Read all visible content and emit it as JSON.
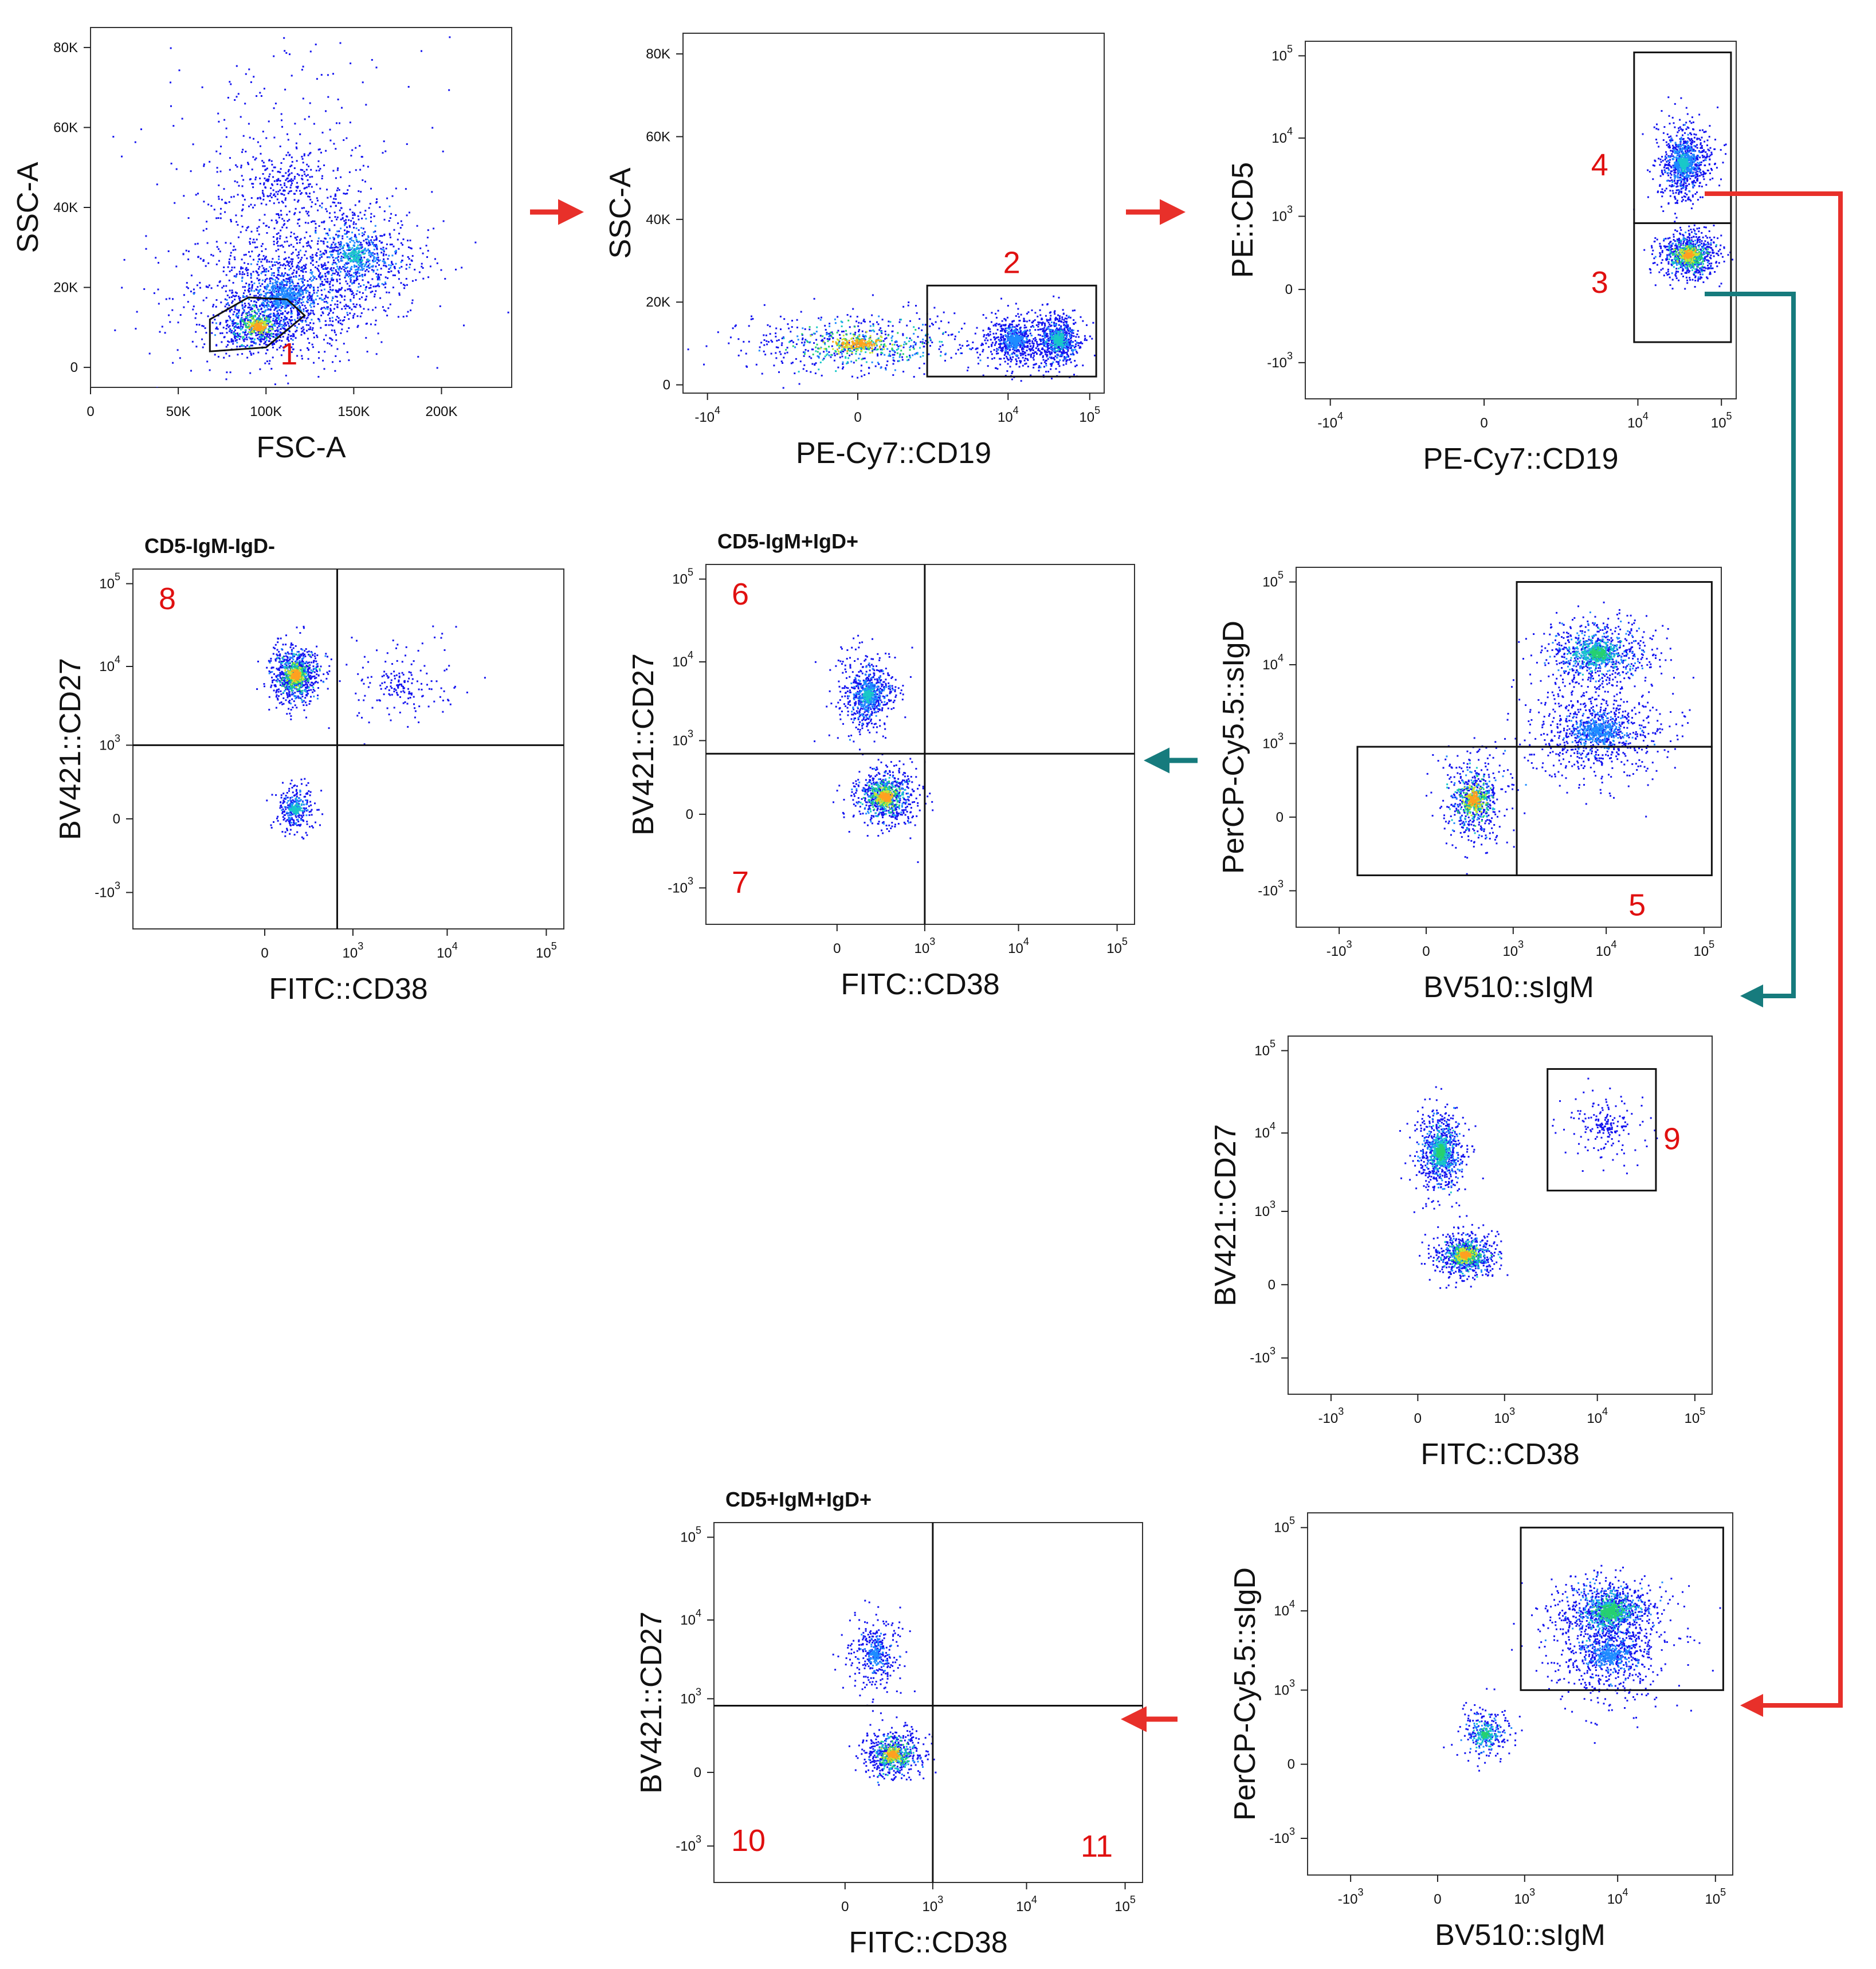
{
  "chart_data": [
    {
      "id": "p1",
      "type": "scatter",
      "xlabel": "FSC-A",
      "ylabel": "SSC-A",
      "title": "",
      "xlim": [
        0,
        240000
      ],
      "ylim": [
        -5000,
        85000
      ],
      "xticks": [
        {
          "v": 0,
          "t": "0"
        },
        {
          "v": 50000,
          "t": "50K"
        },
        {
          "v": 100000,
          "t": "100K"
        },
        {
          "v": 150000,
          "t": "150K"
        },
        {
          "v": 200000,
          "t": "200K"
        }
      ],
      "yticks": [
        {
          "v": 0,
          "t": "0"
        },
        {
          "v": 20000,
          "t": "20K"
        },
        {
          "v": 40000,
          "t": "40K"
        },
        {
          "v": 60000,
          "t": "60K"
        },
        {
          "v": 80000,
          "t": "80K"
        }
      ],
      "gates": [
        {
          "kind": "polygon",
          "label": "1",
          "points": [
            [
              68000,
              4000
            ],
            [
              68000,
              12000
            ],
            [
              90000,
              17500
            ],
            [
              112000,
              17000
            ],
            [
              122000,
              13000
            ],
            [
              100000,
              5000
            ]
          ]
        }
      ],
      "populations": [
        {
          "x": 110000,
          "y": 18000,
          "sx": 32000,
          "sy": 9000,
          "n": 1300,
          "level": 0.25
        },
        {
          "x": 150000,
          "y": 28000,
          "sx": 22000,
          "sy": 8000,
          "n": 700,
          "level": 0.35
        },
        {
          "x": 95000,
          "y": 10500,
          "sx": 12000,
          "sy": 3500,
          "n": 600,
          "level": 0.85
        },
        {
          "x": 110000,
          "y": 45000,
          "sx": 40000,
          "sy": 18000,
          "n": 500,
          "level": 0.0
        }
      ]
    },
    {
      "id": "p2",
      "type": "scatter",
      "xlabel": "PE-Cy7::CD19",
      "ylabel": "SSC-A",
      "title": "",
      "xlim": [
        -20000,
        150000
      ],
      "ylim": [
        -2000,
        85000
      ],
      "xticks": [
        {
          "v": -10000,
          "t": "-10",
          "e": "4"
        },
        {
          "v": 0,
          "t": "0"
        },
        {
          "v": 10000,
          "t": "10",
          "e": "4"
        },
        {
          "v": 100000,
          "t": "10",
          "e": "5"
        }
      ],
      "yticks": [
        {
          "v": 0,
          "t": "0"
        },
        {
          "v": 20000,
          "t": "20K"
        },
        {
          "v": 40000,
          "t": "40K"
        },
        {
          "v": 60000,
          "t": "60K"
        },
        {
          "v": 80000,
          "t": "80K"
        }
      ],
      "gates": [
        {
          "kind": "rect",
          "label": "2",
          "x": [
            900,
            120000
          ],
          "y": [
            2000,
            24000
          ]
        }
      ],
      "populations": [
        {
          "x": 0,
          "y": 10000,
          "sx": 1200,
          "sy": 4500,
          "n": 700,
          "level": 0.85
        },
        {
          "x": 12000,
          "y": 11000,
          "sx": 9000,
          "sy": 4000,
          "n": 600,
          "level": 0.3
        },
        {
          "x": 40000,
          "y": 11000,
          "sx": 20000,
          "sy": 4000,
          "n": 700,
          "level": 0.45
        }
      ]
    },
    {
      "id": "p3",
      "type": "scatter",
      "xlabel": "PE-Cy7::CD19",
      "ylabel": "PE::CD5",
      "title": "",
      "xlim": [
        -20000,
        150000
      ],
      "ylim": [
        -3000,
        150000
      ],
      "xticks": [
        {
          "v": -10000,
          "t": "-10",
          "e": "4"
        },
        {
          "v": 0,
          "t": "0"
        },
        {
          "v": 10000,
          "t": "10",
          "e": "4"
        },
        {
          "v": 100000,
          "t": "10",
          "e": "5"
        }
      ],
      "yticks": [
        {
          "v": -1000,
          "t": "-10",
          "e": "3"
        },
        {
          "v": 0,
          "t": "0"
        },
        {
          "v": 1000,
          "t": "10",
          "e": "3"
        },
        {
          "v": 10000,
          "t": "10",
          "e": "4"
        },
        {
          "v": 100000,
          "t": "10",
          "e": "5"
        }
      ],
      "gates": [
        {
          "kind": "rect",
          "label": "4",
          "x": [
            9000,
            130000
          ],
          "y": [
            800,
            110000
          ]
        },
        {
          "kind": "rect",
          "label": "3",
          "x": [
            9000,
            130000
          ],
          "y": [
            -500,
            800
          ]
        }
      ],
      "populations": [
        {
          "x": 40000,
          "y": 250,
          "sx": 25000,
          "sy": 200,
          "n": 900,
          "level": 0.9
        },
        {
          "x": 35000,
          "y": 5000,
          "sx": 20000,
          "sy": 5000,
          "n": 900,
          "level": 0.35
        }
      ]
    },
    {
      "id": "p5",
      "type": "scatter",
      "xlabel": "BV510::sIgM",
      "ylabel": "PerCP-Cy5.5::sIgD",
      "title": "",
      "xlim": [
        -3000,
        150000
      ],
      "ylim": [
        -3000,
        150000
      ],
      "xticks": [
        {
          "v": -1000,
          "t": "-10",
          "e": "3"
        },
        {
          "v": 0,
          "t": "0"
        },
        {
          "v": 1000,
          "t": "10",
          "e": "3"
        },
        {
          "v": 10000,
          "t": "10",
          "e": "4"
        },
        {
          "v": 100000,
          "t": "10",
          "e": "5"
        }
      ],
      "yticks": [
        {
          "v": -1000,
          "t": "-10",
          "e": "3"
        },
        {
          "v": 0,
          "t": "0"
        },
        {
          "v": 1000,
          "t": "10",
          "e": "3"
        },
        {
          "v": 10000,
          "t": "10",
          "e": "4"
        },
        {
          "v": 100000,
          "t": "10",
          "e": "5"
        }
      ],
      "gates": [
        {
          "kind": "rect",
          "label": "",
          "x": [
            1100,
            120000
          ],
          "y": [
            900,
            100000
          ]
        },
        {
          "kind": "rect",
          "label": "5",
          "x": [
            1100,
            120000
          ],
          "y": [
            -600,
            900
          ]
        },
        {
          "kind": "rect",
          "label": "",
          "x": [
            -600,
            1100
          ],
          "y": [
            -600,
            900
          ]
        }
      ],
      "populations": [
        {
          "x": 300,
          "y": 100,
          "sx": 250,
          "sy": 250,
          "n": 700,
          "level": 0.9
        },
        {
          "x": 8000,
          "y": 14000,
          "sx": 10000,
          "sy": 10000,
          "n": 900,
          "level": 0.5
        },
        {
          "x": 8000,
          "y": 1500,
          "sx": 15000,
          "sy": 2000,
          "n": 900,
          "level": 0.25
        }
      ]
    },
    {
      "id": "p6",
      "type": "scatter",
      "xlabel": "FITC::CD38",
      "ylabel": "BV421::CD27",
      "title": "CD5-IgM+IgD+",
      "xlim": [
        -3000,
        150000
      ],
      "ylim": [
        -3000,
        150000
      ],
      "xticks": [
        {
          "v": 0,
          "t": "0"
        },
        {
          "v": 1000,
          "t": "10",
          "e": "3"
        },
        {
          "v": 10000,
          "t": "10",
          "e": "4"
        },
        {
          "v": 100000,
          "t": "10",
          "e": "5"
        }
      ],
      "yticks": [
        {
          "v": -1000,
          "t": "-10",
          "e": "3"
        },
        {
          "v": 0,
          "t": "0"
        },
        {
          "v": 1000,
          "t": "10",
          "e": "3"
        },
        {
          "v": 10000,
          "t": "10",
          "e": "4"
        },
        {
          "v": 100000,
          "t": "10",
          "e": "5"
        }
      ],
      "gates": [
        {
          "kind": "quad",
          "x": 1000,
          "y": 650,
          "labels": [
            {
              "t": "6",
              "pos": "top-left"
            },
            {
              "t": "7",
              "pos": "bottom-left"
            }
          ]
        }
      ],
      "populations": [
        {
          "x": 300,
          "y": 100,
          "sx": 250,
          "sy": 150,
          "n": 900,
          "level": 0.9
        },
        {
          "x": 150,
          "y": 4000,
          "sx": 150,
          "sy": 4000,
          "n": 700,
          "level": 0.35
        }
      ]
    },
    {
      "id": "p8",
      "type": "scatter",
      "xlabel": "FITC::CD38",
      "ylabel": "BV421::CD27",
      "title": "CD5-IgM-IgD-",
      "xlim": [
        -3000,
        150000
      ],
      "ylim": [
        -3000,
        150000
      ],
      "xticks": [
        {
          "v": 0,
          "t": "0"
        },
        {
          "v": 1000,
          "t": "10",
          "e": "3"
        },
        {
          "v": 10000,
          "t": "10",
          "e": "4"
        },
        {
          "v": 100000,
          "t": "10",
          "e": "5"
        }
      ],
      "yticks": [
        {
          "v": -1000,
          "t": "-10",
          "e": "3"
        },
        {
          "v": 0,
          "t": "0"
        },
        {
          "v": 1000,
          "t": "10",
          "e": "3"
        },
        {
          "v": 10000,
          "t": "10",
          "e": "4"
        },
        {
          "v": 100000,
          "t": "10",
          "e": "5"
        }
      ],
      "gates": [
        {
          "kind": "quad",
          "x": 650,
          "y": 1000,
          "labels": [
            {
              "t": "8",
              "pos": "top-left"
            }
          ]
        }
      ],
      "populations": [
        {
          "x": 150,
          "y": 8000,
          "sx": 120,
          "sy": 5000,
          "n": 1000,
          "level": 0.85
        },
        {
          "x": 150,
          "y": 50,
          "sx": 100,
          "sy": 100,
          "n": 300,
          "level": 0.4
        },
        {
          "x": 3000,
          "y": 6000,
          "sx": 5000,
          "sy": 8000,
          "n": 150,
          "level": 0.0
        }
      ]
    },
    {
      "id": "p9",
      "type": "scatter",
      "xlabel": "FITC::CD38",
      "ylabel": "BV421::CD27",
      "title": "",
      "xlim": [
        -3000,
        150000
      ],
      "ylim": [
        -3000,
        150000
      ],
      "xticks": [
        {
          "v": -1000,
          "t": "-10",
          "e": "3"
        },
        {
          "v": 0,
          "t": "0"
        },
        {
          "v": 1000,
          "t": "10",
          "e": "3"
        },
        {
          "v": 10000,
          "t": "10",
          "e": "4"
        },
        {
          "v": 100000,
          "t": "10",
          "e": "5"
        }
      ],
      "yticks": [
        {
          "v": -1000,
          "t": "-10",
          "e": "3"
        },
        {
          "v": 0,
          "t": "0"
        },
        {
          "v": 1000,
          "t": "10",
          "e": "3"
        },
        {
          "v": 10000,
          "t": "10",
          "e": "4"
        },
        {
          "v": 100000,
          "t": "10",
          "e": "5"
        }
      ],
      "gates": [
        {
          "kind": "rect",
          "label": "9",
          "x": [
            3000,
            40000
          ],
          "y": [
            1900,
            60000
          ]
        }
      ],
      "populations": [
        {
          "x": 300,
          "y": 200,
          "sx": 250,
          "sy": 150,
          "n": 900,
          "level": 0.9
        },
        {
          "x": 100,
          "y": 6000,
          "sx": 100,
          "sy": 6000,
          "n": 900,
          "level": 0.5
        },
        {
          "x": 12000,
          "y": 12000,
          "sx": 10000,
          "sy": 12000,
          "n": 150,
          "level": 0.0
        }
      ]
    },
    {
      "id": "p11",
      "type": "scatter",
      "xlabel": "BV510::sIgM",
      "ylabel": "PerCP-Cy5.5::sIgD",
      "title": "",
      "xlim": [
        -3000,
        150000
      ],
      "ylim": [
        -3000,
        150000
      ],
      "xticks": [
        {
          "v": -1000,
          "t": "-10",
          "e": "3"
        },
        {
          "v": 0,
          "t": "0"
        },
        {
          "v": 1000,
          "t": "10",
          "e": "3"
        },
        {
          "v": 10000,
          "t": "10",
          "e": "4"
        },
        {
          "v": 100000,
          "t": "10",
          "e": "5"
        }
      ],
      "yticks": [
        {
          "v": -1000,
          "t": "-10",
          "e": "3"
        },
        {
          "v": 0,
          "t": "0"
        },
        {
          "v": 1000,
          "t": "10",
          "e": "3"
        },
        {
          "v": 10000,
          "t": "10",
          "e": "4"
        },
        {
          "v": 100000,
          "t": "10",
          "e": "5"
        }
      ],
      "gates": [
        {
          "kind": "rect",
          "label": "",
          "x": [
            900,
            120000
          ],
          "y": [
            1000,
            100000
          ]
        }
      ],
      "populations": [
        {
          "x": 8000,
          "y": 10000,
          "sx": 8000,
          "sy": 8000,
          "n": 1100,
          "level": 0.65
        },
        {
          "x": 300,
          "y": 200,
          "sx": 200,
          "sy": 200,
          "n": 300,
          "level": 0.5
        },
        {
          "x": 8000,
          "y": 3000,
          "sx": 12000,
          "sy": 4000,
          "n": 700,
          "level": 0.25
        }
      ]
    },
    {
      "id": "p10",
      "type": "scatter",
      "xlabel": "FITC::CD38",
      "ylabel": "BV421::CD27",
      "title": "CD5+IgM+IgD+",
      "xlim": [
        -3000,
        150000
      ],
      "ylim": [
        -3000,
        150000
      ],
      "xticks": [
        {
          "v": 0,
          "t": "0"
        },
        {
          "v": 1000,
          "t": "10",
          "e": "3"
        },
        {
          "v": 10000,
          "t": "10",
          "e": "4"
        },
        {
          "v": 100000,
          "t": "10",
          "e": "5"
        }
      ],
      "yticks": [
        {
          "v": -1000,
          "t": "-10",
          "e": "3"
        },
        {
          "v": 0,
          "t": "0"
        },
        {
          "v": 1000,
          "t": "10",
          "e": "3"
        },
        {
          "v": 10000,
          "t": "10",
          "e": "4"
        },
        {
          "v": 100000,
          "t": "10",
          "e": "5"
        }
      ],
      "gates": [
        {
          "kind": "quad",
          "x": 1000,
          "y": 800,
          "labels": [
            {
              "t": "10",
              "pos": "bottom-left"
            },
            {
              "t": "11",
              "pos": "bottom-right"
            }
          ]
        }
      ],
      "populations": [
        {
          "x": 300,
          "y": 100,
          "sx": 250,
          "sy": 120,
          "n": 700,
          "level": 0.9
        },
        {
          "x": 150,
          "y": 4000,
          "sx": 150,
          "sy": 4000,
          "n": 350,
          "level": 0.25
        }
      ]
    }
  ],
  "colors": {
    "arrow_red": "#e8302a",
    "arrow_teal": "#167b7d",
    "gate_label": "#e01010",
    "density_scale": [
      "#1414f0",
      "#1f8cff",
      "#19c8c8",
      "#26d070",
      "#c8e632",
      "#ffa020",
      "#e80e0e"
    ]
  }
}
